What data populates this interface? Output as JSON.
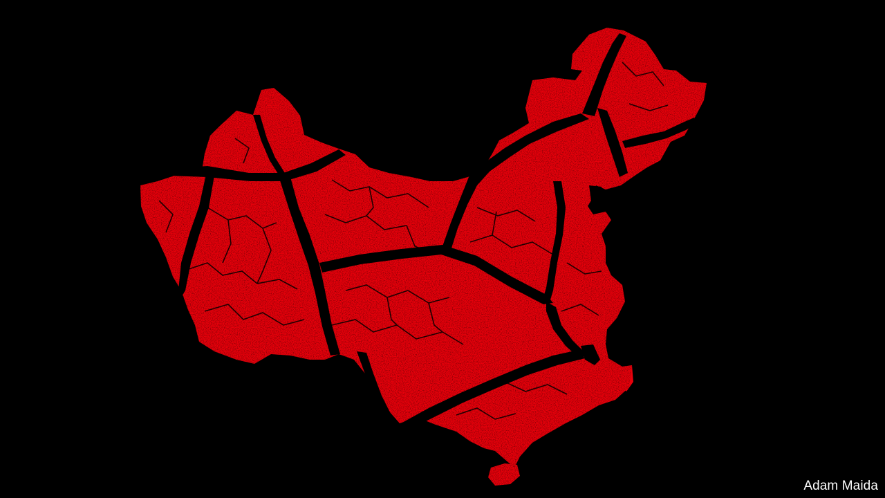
{
  "illustration": {
    "subject": "cracked-red-map-of-china",
    "colors": {
      "background": "#000000",
      "map_fill": "#e8000b",
      "cracks": "#000000"
    }
  },
  "credit": "Adam Maida"
}
